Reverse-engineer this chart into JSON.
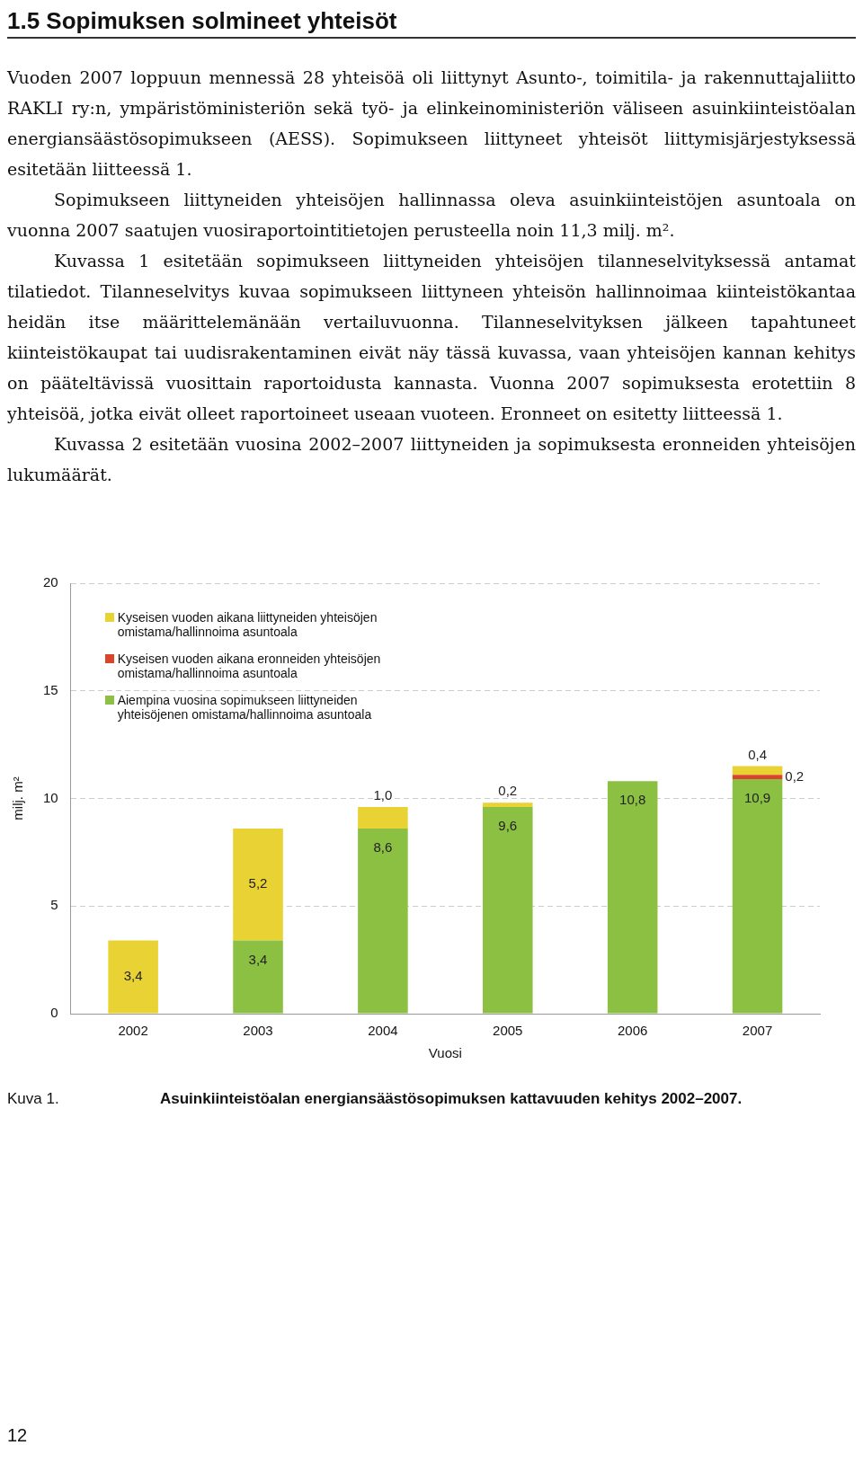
{
  "chart_data": {
    "type": "bar",
    "title": "1.5 Sopimuksen solmineet yhteisöt",
    "annotations": [
      "Vuoden 2007 loppuun mennessä 28 yhteisöä oli liittynyt Asunto-, toimitila- ja rakennuttajaliitto RAKLI ry:n, ympäristöministeriön sekä työ- ja elinkeinoministeriön väliseen asuinkiinteistöalan energiansäästösopimukseen (AESS). Sopimukseen liittyneet yhteisöt liittymisjärjestyksessä esitetään liitteessä 1.",
      "Sopimukseen liittyneiden yhteisöjen hallinnassa oleva asuinkiinteistöjen asuntoala on vuonna 2007 saatujen vuosiraportointitietojen perusteella noin 11,3 milj. m².",
      "Kuvassa 1 esitetään sopimukseen liittyneiden yhteisöjen tilanneselvityksessä antamat tilatiedot. Tilanneselvitys kuvaa sopimukseen liittyneen yhteisön hallinnoimaa kiinteistökantaa heidän itse määrittelemänään vertailuvuonna. Tilanneselvityksen jälkeen tapahtuneet kiinteistökaupat tai uudisrakentaminen eivät näy tässä kuvassa, vaan yhteisöjen kannan kehitys on pääteltävissä vuosittain raportoidusta kannasta. Vuonna 2007 sopimuksesta erotettiin 8 yhteisöä, jotka eivät olleet raportoineet useaan vuoteen. Eronneet on esitetty liitteessä 1.",
      "Kuvassa 2 esitetään vuosina 2002–2007 liittyneiden ja sopimuksesta eronneiden yhteisöjen lukumäärät.",
      "Kuva 1.",
      "Asuinkiinteistöalan energiansäästösopimuksen kattavuuden kehitys 2002–2007.",
      "12"
    ],
    "xlabel": "Vuosi",
    "ylabel": "milj. m²",
    "categories": [
      "2002",
      "2003",
      "2004",
      "2005",
      "2006",
      "2007"
    ],
    "stacked": true,
    "series": [
      {
        "name": "Aiempina vuosina sopimukseen liittyneiden yhteisöjenen omistama/hallinnoima asuntoala",
        "color": "#8bc043",
        "values": [
          null,
          3.4,
          8.6,
          9.6,
          10.8,
          10.9
        ],
        "value_labels": [
          null,
          "3,4",
          "8,6",
          "9,6",
          "10,8",
          "10,9"
        ]
      },
      {
        "name": "Kyseisen vuoden aikana eronneiden yhteisöjen omistama/hallinnoima asuntoala",
        "color": "#d9452b",
        "values": [
          null,
          null,
          null,
          null,
          null,
          0.2
        ],
        "value_labels": [
          null,
          null,
          null,
          null,
          null,
          "0,2"
        ]
      },
      {
        "name": "Kyseisen vuoden aikana liittyneiden yhteisöjen omistama/hallinnoima asuntoala",
        "color": "#e9d234",
        "values": [
          3.4,
          5.2,
          1.0,
          0.2,
          null,
          0.4
        ],
        "value_labels": [
          "3,4",
          "5,2",
          "1,0",
          "0,2",
          null,
          "0,4"
        ]
      }
    ],
    "ylim": [
      0,
      20
    ],
    "yticks": [
      0,
      5,
      10,
      15,
      20
    ],
    "grid": "y",
    "legend": "top left"
  }
}
